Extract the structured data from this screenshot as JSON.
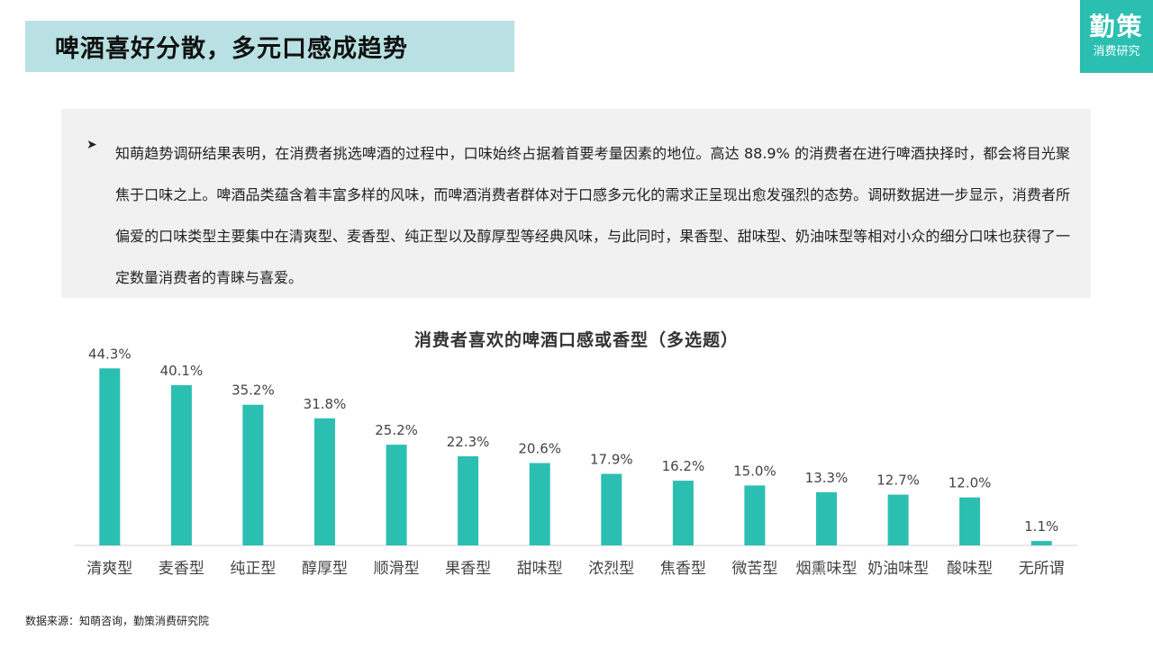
{
  "header": {
    "title": "啤酒喜好分散，多元口感成趋势"
  },
  "logo": {
    "main": "勤策",
    "sub": "消费研究"
  },
  "summary": {
    "bullet": "➤",
    "text": "知萌趋势调研结果表明，在消费者挑选啤酒的过程中，口味始终占据着首要考量因素的地位。高达 88.9% 的消费者在进行啤酒抉择时，都会将目光聚焦于口味之上。啤酒品类蕴含着丰富多样的风味，而啤酒消费者群体对于口感多元化的需求正呈现出愈发强烈的态势。调研数据进一步显示，消费者所偏爱的口味类型主要集中在清爽型、麦香型、纯正型以及醇厚型等经典风味，与此同时，果香型、甜味型、奶油味型等相对小众的细分口味也获得了一定数量消费者的青睐与喜爱。"
  },
  "chart_data": {
    "type": "bar",
    "title": "消费者喜欢的啤酒口感或香型（多选题）",
    "xlabel": "",
    "ylabel": "",
    "categories": [
      "清爽型",
      "麦香型",
      "纯正型",
      "醇厚型",
      "顺滑型",
      "果香型",
      "甜味型",
      "浓烈型",
      "焦香型",
      "微苦型",
      "烟熏味型",
      "奶油味型",
      "酸味型",
      "无所谓"
    ],
    "values": [
      44.3,
      40.1,
      35.2,
      31.8,
      25.2,
      22.3,
      20.6,
      17.9,
      16.2,
      15.0,
      13.3,
      12.7,
      12.0,
      1.1
    ],
    "value_labels": [
      "44.3%",
      "40.1%",
      "35.2%",
      "31.8%",
      "25.2%",
      "22.3%",
      "20.6%",
      "17.9%",
      "16.2%",
      "15.0%",
      "13.3%",
      "12.7%",
      "12.0%",
      "1.1%"
    ],
    "ylim": [
      0,
      50
    ],
    "grid": false,
    "legend": "none",
    "bar_color": "#2bbfb2"
  },
  "source": {
    "text": "数据来源：知萌咨询，勤策消费研究院"
  }
}
